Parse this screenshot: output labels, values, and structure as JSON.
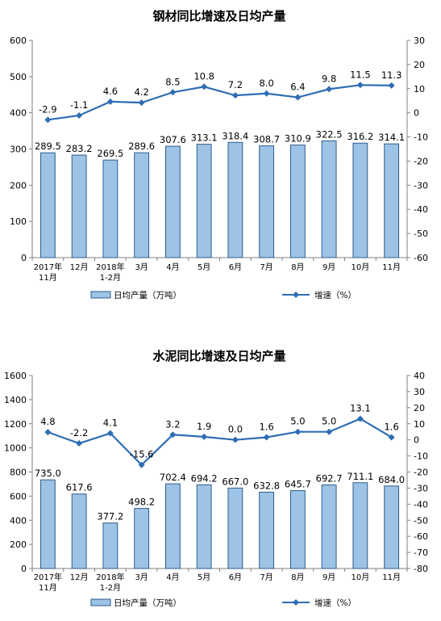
{
  "chart_data": [
    {
      "type": "bar",
      "title": "钢材同比增速及日均产量",
      "categories": [
        [
          "2017年",
          "11月"
        ],
        [
          "12月"
        ],
        [
          "2018年",
          "1-2月"
        ],
        [
          "3月"
        ],
        [
          "4月"
        ],
        [
          "5月"
        ],
        [
          "6月"
        ],
        [
          "7月"
        ],
        [
          "8月"
        ],
        [
          "9月"
        ],
        [
          "10月"
        ],
        [
          "11月"
        ]
      ],
      "series": [
        {
          "name": "日均产量（万吨）",
          "type": "bar",
          "axis": "left",
          "values": [
            289.5,
            283.2,
            269.5,
            289.6,
            307.6,
            313.1,
            318.4,
            308.7,
            310.9,
            322.5,
            316.2,
            314.1
          ],
          "labels": [
            "289.5",
            "283.2",
            "269.5",
            "289.6",
            "307.6",
            "313.1",
            "318.4",
            "308.7",
            "310.9",
            "322.5",
            "316.2",
            "314.1"
          ]
        },
        {
          "name": "增速（%）",
          "type": "line",
          "axis": "right",
          "values": [
            -2.9,
            -1.1,
            4.6,
            4.2,
            8.5,
            10.8,
            7.2,
            8.0,
            6.4,
            9.8,
            11.5,
            11.3
          ],
          "labels": [
            "-2.9",
            "-1.1",
            "4.6",
            "4.2",
            "8.5",
            "10.8",
            "7.2",
            "8.0",
            "6.4",
            "9.8",
            "11.5",
            "11.3"
          ]
        }
      ],
      "y_left": {
        "min": 0,
        "max": 600,
        "ticks": [
          "0",
          "100",
          "200",
          "300",
          "400",
          "500",
          "600"
        ]
      },
      "y_right": {
        "min": -60,
        "max": 30,
        "ticks": [
          "-60",
          "-50",
          "-40",
          "-30",
          "-20",
          "-10",
          "0",
          "10",
          "20",
          "30"
        ]
      },
      "legend_position": "bottom",
      "colors": {
        "bar_fill": "#9DC3E6",
        "bar_stroke": "#2E5D8A",
        "line": "#2E6DB4"
      }
    },
    {
      "type": "bar",
      "title": "水泥同比增速及日均产量",
      "categories": [
        [
          "2017年",
          "11月"
        ],
        [
          "12月"
        ],
        [
          "2018年",
          "1-2月"
        ],
        [
          "3月"
        ],
        [
          "4月"
        ],
        [
          "5月"
        ],
        [
          "6月"
        ],
        [
          "7月"
        ],
        [
          "8月"
        ],
        [
          "9月"
        ],
        [
          "10月"
        ],
        [
          "11月"
        ]
      ],
      "series": [
        {
          "name": "日均产量（万吨）",
          "type": "bar",
          "axis": "left",
          "values": [
            735.0,
            617.6,
            377.2,
            498.2,
            702.4,
            694.2,
            667.0,
            632.8,
            645.7,
            692.7,
            711.1,
            684.0
          ],
          "labels": [
            "735.0",
            "617.6",
            "377.2",
            "498.2",
            "702.4",
            "694.2",
            "667.0",
            "632.8",
            "645.7",
            "692.7",
            "711.1",
            "684.0"
          ]
        },
        {
          "name": "增速（%）",
          "type": "line",
          "axis": "right",
          "values": [
            4.8,
            -2.2,
            4.1,
            -15.6,
            3.2,
            1.9,
            0.0,
            1.6,
            5.0,
            5.0,
            13.1,
            1.6
          ],
          "labels": [
            "4.8",
            "-2.2",
            "4.1",
            "-15.6",
            "3.2",
            "1.9",
            "0.0",
            "1.6",
            "5.0",
            "5.0",
            "13.1",
            "1.6"
          ]
        }
      ],
      "y_left": {
        "min": 0,
        "max": 1600,
        "ticks": [
          "0",
          "200",
          "400",
          "600",
          "800",
          "1000",
          "1200",
          "1400",
          "1600"
        ]
      },
      "y_right": {
        "min": -80,
        "max": 40,
        "ticks": [
          "-80",
          "-70",
          "-60",
          "-50",
          "-40",
          "-30",
          "-20",
          "-10",
          "0",
          "10",
          "20",
          "30",
          "40"
        ]
      },
      "legend_position": "bottom",
      "colors": {
        "bar_fill": "#9DC3E6",
        "bar_stroke": "#2E5D8A",
        "line": "#2E6DB4"
      }
    }
  ]
}
